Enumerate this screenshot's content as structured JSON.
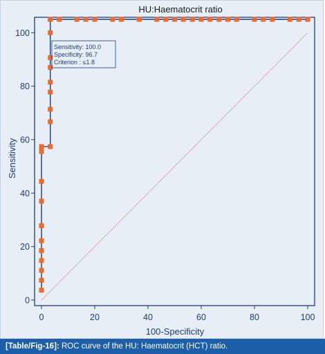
{
  "caption": {
    "label": "[Table/Fig-16]:",
    "text": "ROC curve of the HU: Haematocrit (HCT) ratio."
  },
  "colors": {
    "panel_bg": "#e7eef5",
    "curve": "#1b3c7a",
    "marker": "#ee6a2b",
    "diagonal": "#d94c4c",
    "frame": "#1b3c7a",
    "caption_bg": "#1d5ea8"
  },
  "chart_data": {
    "type": "line",
    "title": "HU:Haematocrit ratio",
    "xlabel": "100-Specificity",
    "ylabel": "Sensitivity",
    "xlim": [
      0,
      100
    ],
    "ylim": [
      0,
      105
    ],
    "x_ticks": [
      0,
      20,
      40,
      60,
      80,
      100
    ],
    "y_ticks": [
      0,
      20,
      40,
      60,
      80,
      100
    ],
    "grid": false,
    "reference_line": {
      "x": [
        0,
        100
      ],
      "y": [
        0,
        100
      ]
    },
    "annotation": {
      "lines": [
        "Sensitivity: 100.0",
        "Specificity: 96.7",
        "Criterion : ≤1.8"
      ]
    },
    "series": [
      {
        "x": [
          0,
          0,
          0,
          0,
          0,
          0,
          0,
          0,
          0,
          0,
          0,
          0,
          0,
          3.3,
          3.3,
          3.3,
          3.3,
          3.3,
          3.3,
          3.3,
          3.3,
          3.3,
          3.3,
          3.3,
          6.7,
          13.3,
          16.7,
          20,
          26.7,
          30,
          36.7,
          43.3,
          46.7,
          50,
          53.3,
          56.7,
          60,
          63.3,
          66.7,
          70,
          73.3,
          80,
          83.3,
          86.7,
          93.3,
          96.7,
          100
        ],
        "y": [
          3.7,
          7.4,
          11.1,
          14.8,
          18.5,
          22.2,
          27.8,
          37.0,
          44.4,
          55.6,
          57.4,
          57.4,
          57.4,
          57.4,
          66.7,
          71.4,
          77.8,
          81.5,
          87.0,
          90.7,
          100,
          105,
          105,
          105,
          105,
          105,
          105,
          105,
          105,
          105,
          105,
          105,
          105,
          105,
          105,
          105,
          105,
          105,
          105,
          105,
          105,
          105,
          105,
          105,
          105,
          105,
          105
        ]
      }
    ]
  }
}
